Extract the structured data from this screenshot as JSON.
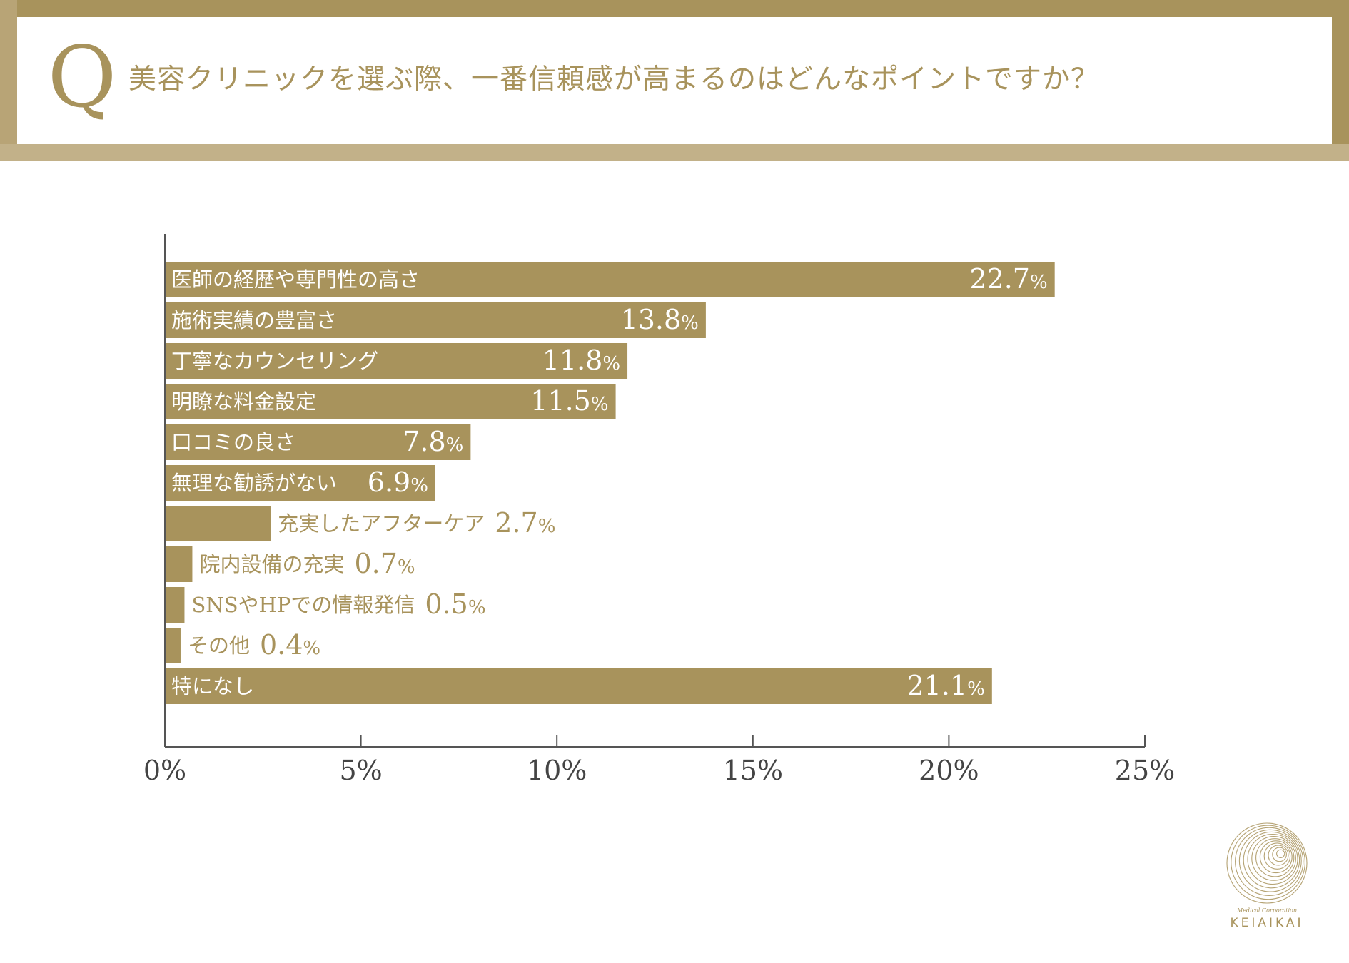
{
  "header": {
    "q_letter": "Q",
    "question": "美容クリニックを選ぶ際、一番信頼感が高まるのはどんなポイントですか？"
  },
  "colors": {
    "gold": "#a8935c",
    "gold_light": "#c2b189",
    "bar_text": "#ffffff",
    "axis": "#555555",
    "tick_label": "#444444"
  },
  "chart_data": {
    "type": "bar",
    "orientation": "horizontal",
    "categories": [
      "医師の経歴や専門性の高さ",
      "施術実績の豊富さ",
      "丁寧なカウンセリング",
      "明瞭な料金設定",
      "口コミの良さ",
      "無理な勧誘がない",
      "充実したアフターケア",
      "院内設備の充実",
      "SNSやHPでの情報発信",
      "その他",
      "特になし"
    ],
    "values": [
      22.7,
      13.8,
      11.8,
      11.5,
      7.8,
      6.9,
      2.7,
      0.7,
      0.5,
      0.4,
      21.1
    ],
    "value_labels": [
      "22.7",
      "13.8",
      "11.8",
      "11.5",
      "7.8",
      "6.9",
      "2.7",
      "0.7",
      "0.5",
      "0.4",
      "21.1"
    ],
    "value_suffix": "%",
    "xlim": [
      0,
      25
    ],
    "xticks": [
      0,
      5,
      10,
      15,
      20,
      25
    ],
    "xtick_labels": [
      "0%",
      "5%",
      "10%",
      "15%",
      "20%",
      "25%"
    ],
    "grid": false,
    "legend": "none"
  },
  "logo": {
    "subtitle": "Medical Corporation",
    "name": "KEIAIKAI"
  }
}
